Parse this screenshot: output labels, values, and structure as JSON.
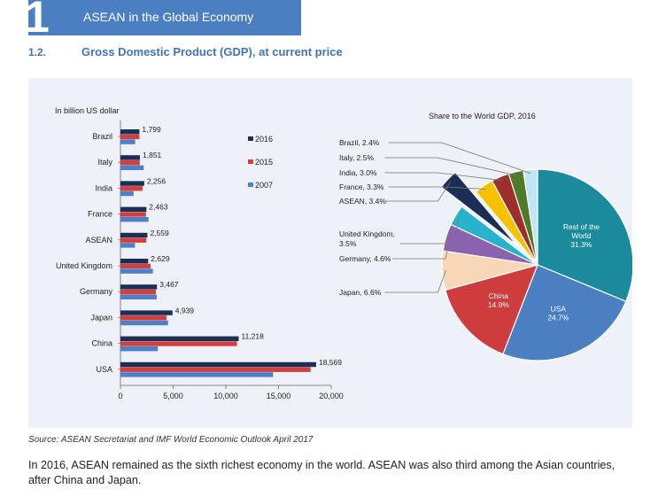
{
  "header": {
    "chapter_number": "1",
    "chapter_title": "ASEAN in the Global Economy",
    "section_number": "1.2.",
    "section_title": "Gross Domestic Product (GDP), at current price"
  },
  "chart_data": [
    {
      "type": "bar",
      "orientation": "horizontal",
      "unit_label": "In billion US dollar",
      "categories": [
        "Brazil",
        "Italy",
        "India",
        "France",
        "ASEAN",
        "United Kingdom",
        "Germany",
        "Japan",
        "China",
        "USA"
      ],
      "data_labels": [
        "1,799",
        "1,851",
        "2,256",
        "2,463",
        "2,559",
        "2,629",
        "3,467",
        "4,939",
        "11,218",
        "18,569"
      ],
      "series": [
        {
          "name": "2016",
          "color": "#1b2f54",
          "values": [
            1799,
            1851,
            2256,
            2463,
            2559,
            2629,
            3467,
            4939,
            11218,
            18569
          ]
        },
        {
          "name": "2015",
          "color": "#d1403f",
          "values": [
            1800,
            1830,
            2100,
            2420,
            2450,
            2860,
            3360,
            4380,
            11060,
            18040
          ]
        },
        {
          "name": "2007",
          "color": "#4f7fc7",
          "values": [
            1400,
            2200,
            1240,
            2660,
            1380,
            3080,
            3440,
            4520,
            3550,
            14480
          ]
        }
      ],
      "xlim": [
        0,
        20000
      ],
      "xticks": [
        0,
        5000,
        10000,
        15000,
        20000
      ],
      "xtick_labels": [
        "0",
        "5,000",
        "10,000",
        "15,000",
        "20,000"
      ]
    },
    {
      "type": "pie",
      "title": "Share to the World GDP, 2016",
      "slices": [
        {
          "label": "Rest of the World",
          "display": "Rest of the\nWorld\n31.3%",
          "value": 31.3,
          "color": "#1b8a9c",
          "inside": true
        },
        {
          "label": "USA",
          "display": "USA\n24.7%",
          "value": 24.7,
          "color": "#4a7fc1",
          "inside": true
        },
        {
          "label": "China",
          "display": "China\n14.9%",
          "value": 14.9,
          "color": "#cf3c3e",
          "inside": true
        },
        {
          "label": "Japan",
          "display": "Japan, 6.6%",
          "value": 6.6,
          "color": "#f7d7b5",
          "inside": false
        },
        {
          "label": "Germany",
          "display": "Germany, 4.6%",
          "value": 4.6,
          "color": "#8a62ae",
          "inside": false
        },
        {
          "label": "United Kingdom",
          "display": "United Kingdom,\n3.5%",
          "value": 3.5,
          "color": "#27b3cc",
          "inside": false
        },
        {
          "label": "ASEAN",
          "display": "ASEAN, 3.4%",
          "value": 3.4,
          "color": "#1b2f54",
          "inside": false,
          "exploded": true
        },
        {
          "label": "France",
          "display": "France, 3.3%",
          "value": 3.3,
          "color": "#f6c200",
          "inside": false
        },
        {
          "label": "India",
          "display": "India, 3.0%",
          "value": 3.0,
          "color": "#9e2d2d",
          "inside": false
        },
        {
          "label": "Italy",
          "display": "Italy, 2.5%",
          "value": 2.5,
          "color": "#4e7a2a",
          "inside": false
        },
        {
          "label": "Brazil",
          "display": "Brazil, 2.4%",
          "value": 2.4,
          "color": "#bfe6f2",
          "inside": false
        }
      ]
    }
  ],
  "source": "Source: ASEAN Secretariat and IMF World Economic Outlook April 2017",
  "paragraph": "In 2016, ASEAN remained as the sixth richest economy in the world. ASEAN was also third among the Asian countries, after China and Japan."
}
